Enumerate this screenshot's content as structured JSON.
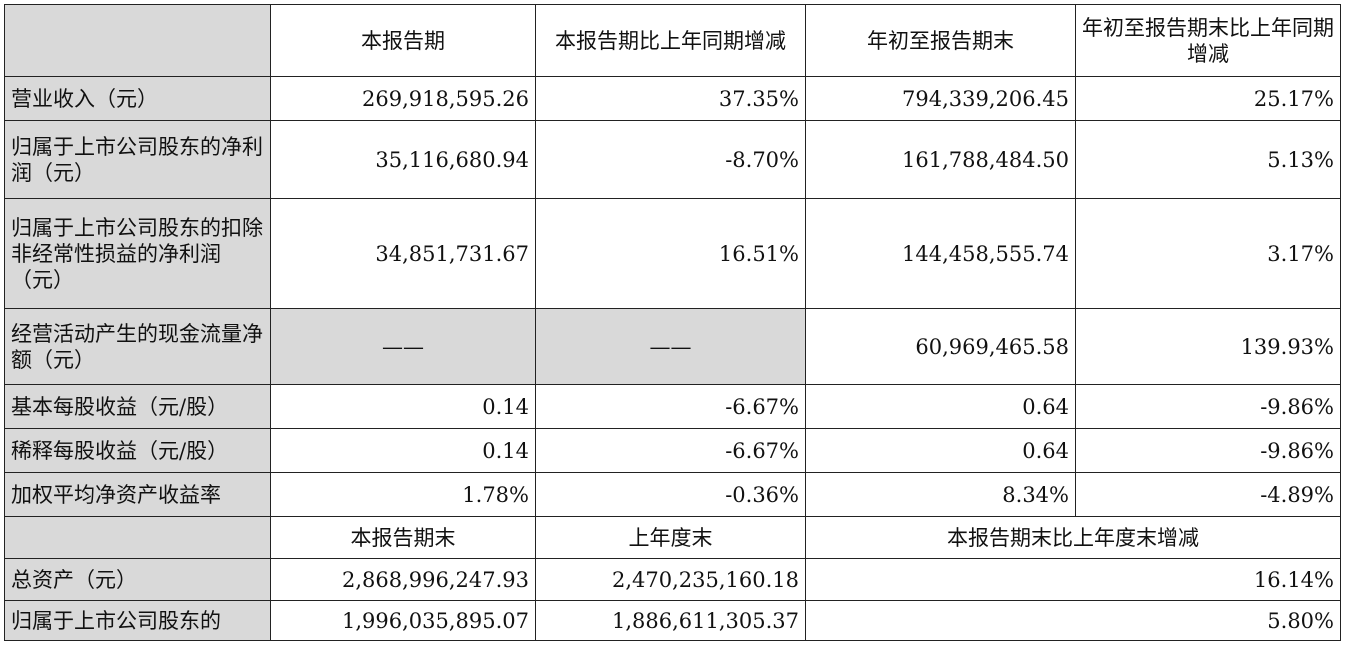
{
  "header1": {
    "blank": "",
    "col1": "本报告期",
    "col2": "本报告期比上年同期增减",
    "col3": "年初至报告期末",
    "col4": "年初至报告期末比上年同期增减"
  },
  "rows": [
    {
      "label": "营业收入（元）",
      "v1": "269,918,595.26",
      "v2": "37.35%",
      "v3": "794,339,206.45",
      "v4": "25.17%"
    },
    {
      "label": "归属于上市公司股东的净利润（元）",
      "v1": "35,116,680.94",
      "v2": "-8.70%",
      "v3": "161,788,484.50",
      "v4": "5.13%"
    },
    {
      "label": "归属于上市公司股东的扣除非经常性损益的净利润（元）",
      "v1": "34,851,731.67",
      "v2": "16.51%",
      "v3": "144,458,555.74",
      "v4": "3.17%"
    },
    {
      "label": "经营活动产生的现金流量净额（元）",
      "v1": "——",
      "v2": "——",
      "v3": "60,969,465.58",
      "v4": "139.93%"
    },
    {
      "label": "基本每股收益（元/股）",
      "v1": "0.14",
      "v2": "-6.67%",
      "v3": "0.64",
      "v4": "-9.86%"
    },
    {
      "label": "稀释每股收益（元/股）",
      "v1": "0.14",
      "v2": "-6.67%",
      "v3": "0.64",
      "v4": "-9.86%"
    },
    {
      "label": "加权平均净资产收益率",
      "v1": "1.78%",
      "v2": "-0.36%",
      "v3": "8.34%",
      "v4": "-4.89%"
    }
  ],
  "header2": {
    "blank": "",
    "col1": "本报告期末",
    "col2": "上年度末",
    "col3": "本报告期末比上年度末增减"
  },
  "rows2": [
    {
      "label": "总资产（元）",
      "v1": "2,868,996,247.93",
      "v2": "2,470,235,160.18",
      "v3": "16.14%"
    },
    {
      "label": "归属于上市公司股东的",
      "v1": "1,996,035,895.07",
      "v2": "1,886,611,305.37",
      "v3": "5.80%"
    }
  ]
}
